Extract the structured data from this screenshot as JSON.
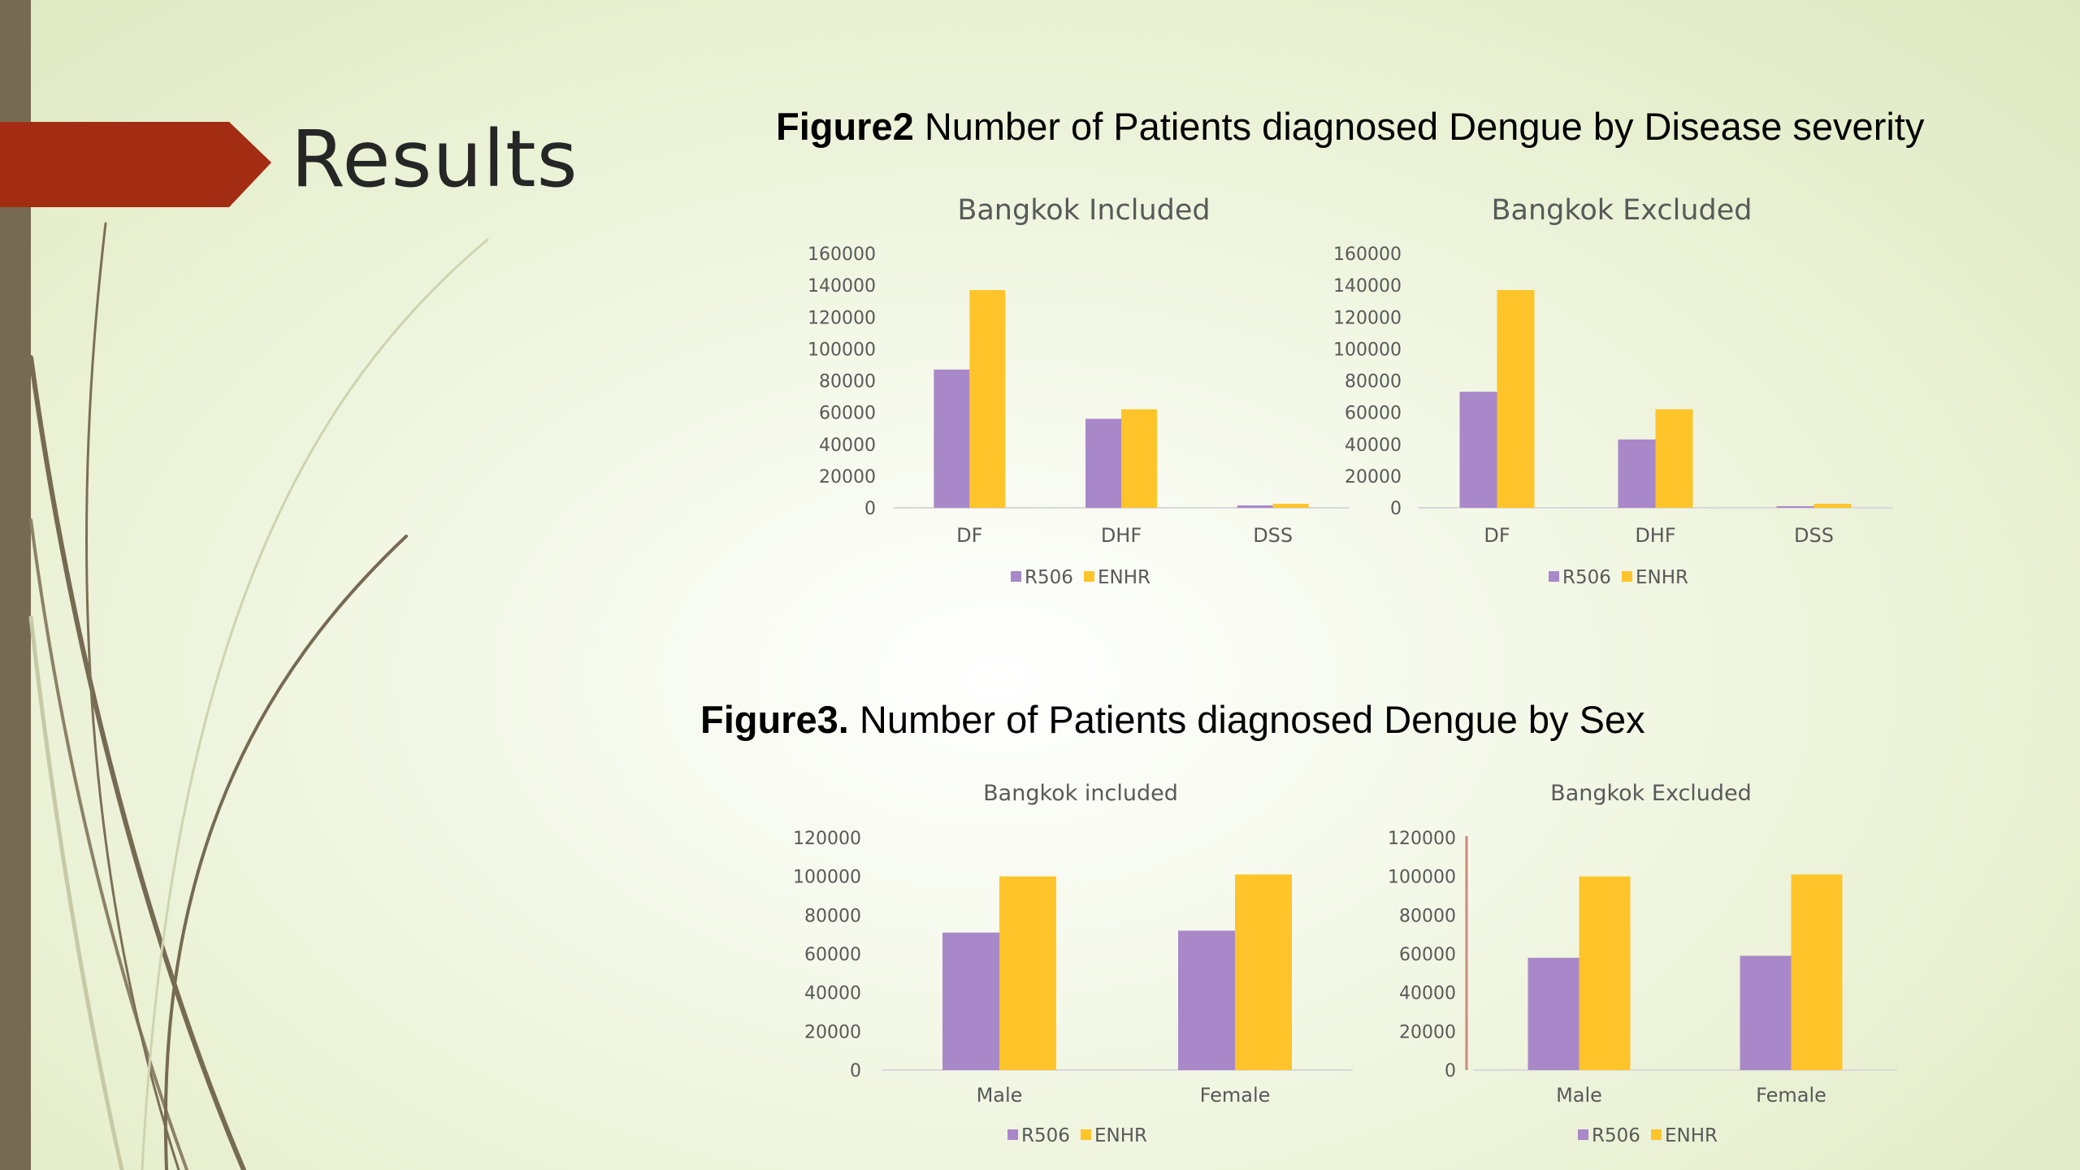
{
  "slide": {
    "title": "Results",
    "colors": {
      "arrow": "#a32d12",
      "left_bar": "#776a53",
      "r506": "#a988c9",
      "enhr": "#fec42a"
    }
  },
  "figure2": {
    "label": "Figure2",
    "text": "Number of Patients diagnosed Dengue by Disease severity"
  },
  "figure3": {
    "label": "Figure3.",
    "text": "Number of Patients diagnosed Dengue by Sex"
  },
  "chart_data": [
    {
      "type": "bar",
      "title": "Bangkok Included",
      "categories": [
        "DF",
        "DHF",
        "DSS"
      ],
      "series": [
        {
          "name": "R506",
          "values": [
            87000,
            56000,
            1500
          ]
        },
        {
          "name": "ENHR",
          "values": [
            137000,
            62000,
            2500
          ]
        }
      ],
      "ylim": [
        0,
        160000
      ],
      "yticks": [
        0,
        20000,
        40000,
        60000,
        80000,
        100000,
        120000,
        140000,
        160000
      ],
      "legend": "bottom"
    },
    {
      "type": "bar",
      "title": "Bangkok Excluded",
      "categories": [
        "DF",
        "DHF",
        "DSS"
      ],
      "series": [
        {
          "name": "R506",
          "values": [
            73000,
            43000,
            1000
          ]
        },
        {
          "name": "ENHR",
          "values": [
            137000,
            62000,
            2500
          ]
        }
      ],
      "ylim": [
        0,
        160000
      ],
      "yticks": [
        0,
        20000,
        40000,
        60000,
        80000,
        100000,
        120000,
        140000,
        160000
      ],
      "legend": "bottom"
    },
    {
      "type": "bar",
      "title": "Bangkok included",
      "categories": [
        "Male",
        "Female"
      ],
      "series": [
        {
          "name": "R506",
          "values": [
            71000,
            72000
          ]
        },
        {
          "name": "ENHR",
          "values": [
            100000,
            101000
          ]
        }
      ],
      "ylim": [
        0,
        120000
      ],
      "yticks": [
        0,
        20000,
        40000,
        60000,
        80000,
        100000,
        120000
      ],
      "legend": "bottom"
    },
    {
      "type": "bar",
      "title": "Bangkok Excluded",
      "categories": [
        "Male",
        "Female"
      ],
      "series": [
        {
          "name": "R506",
          "values": [
            58000,
            59000
          ]
        },
        {
          "name": "ENHR",
          "values": [
            100000,
            101000
          ]
        }
      ],
      "ylim": [
        0,
        120000
      ],
      "yticks": [
        0,
        20000,
        40000,
        60000,
        80000,
        100000,
        120000
      ],
      "legend": "bottom"
    }
  ]
}
